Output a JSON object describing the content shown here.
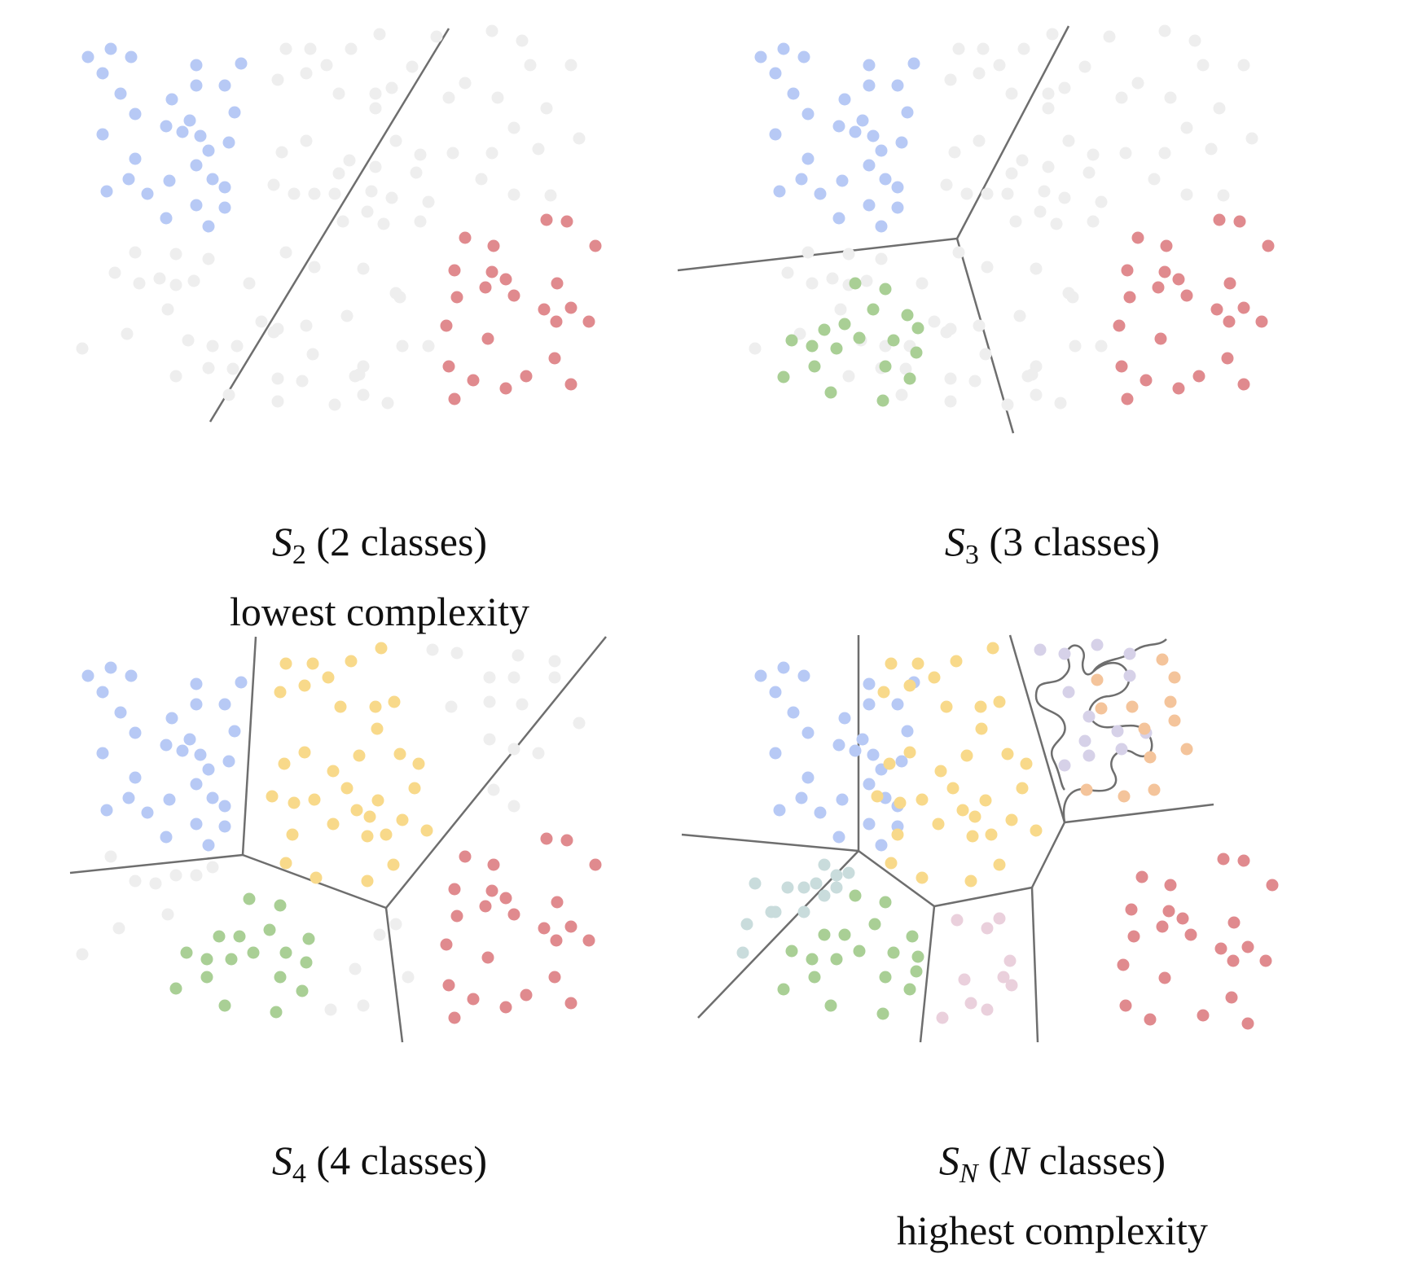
{
  "colors": {
    "blue": "#b7c9f5",
    "red": "#e08a8e",
    "green": "#a9cf95",
    "yellow": "#f8d98a",
    "gray": "#eeeeee",
    "purple": "#d6d1e8",
    "orange": "#f4c49b",
    "pink": "#ead0dc",
    "teal": "#c9dcdc",
    "line": "#6e6e6e"
  },
  "panels": [
    {
      "caption": {
        "symbol": "S",
        "subscript": "2",
        "text": "(2 classes)",
        "note": "lowest complexity"
      }
    },
    {
      "caption": {
        "symbol": "S",
        "subscript": "3",
        "text": "(3 classes)",
        "note": ""
      }
    },
    {
      "caption": {
        "symbol": "S",
        "subscript": "4",
        "text": "(4 classes)",
        "note": ""
      }
    },
    {
      "caption": {
        "symbol": "S",
        "subscript": "N",
        "text_open": "(",
        "text_var": "N",
        "text_rest": " classes)",
        "note": "highest complexity"
      }
    }
  ]
}
